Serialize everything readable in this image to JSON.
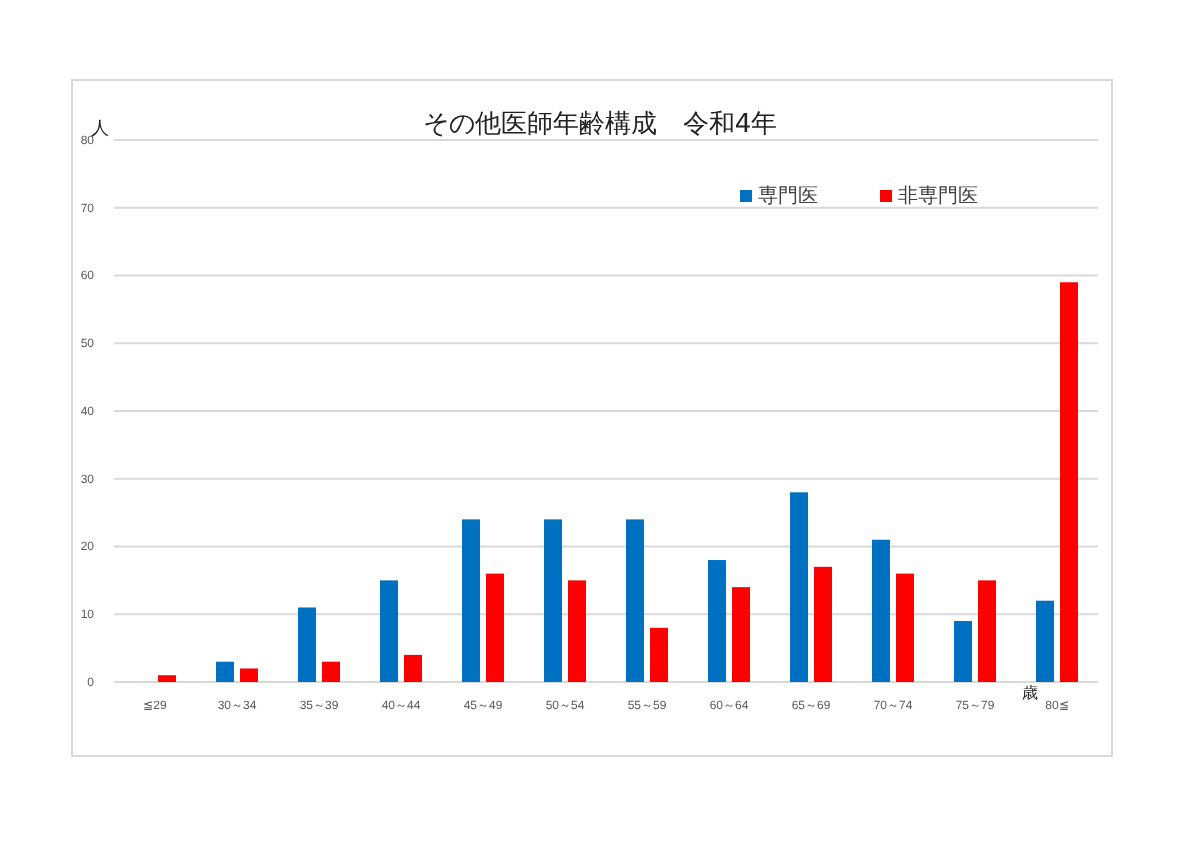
{
  "chart_data": {
    "type": "bar",
    "title": "その他医師年齢構成　令和4年",
    "ylabel": "人",
    "xlabel": "歳",
    "categories": [
      "≦29",
      "30～34",
      "35～39",
      "40～44",
      "45～49",
      "50～54",
      "55～59",
      "60～64",
      "65～69",
      "70～74",
      "75～79",
      "80≦"
    ],
    "series": [
      {
        "name": "専門医",
        "color": "#0070c0",
        "values": [
          0,
          3,
          11,
          15,
          24,
          24,
          24,
          18,
          28,
          21,
          9,
          12
        ]
      },
      {
        "name": "非専門医",
        "color": "#ff0000",
        "values": [
          1,
          2,
          3,
          4,
          16,
          15,
          8,
          14,
          17,
          16,
          15,
          59
        ]
      }
    ],
    "ylim": [
      0,
      80
    ],
    "yticks": [
      0,
      10,
      20,
      30,
      40,
      50,
      60,
      70,
      80
    ],
    "grid": "y",
    "legend": "top right"
  }
}
